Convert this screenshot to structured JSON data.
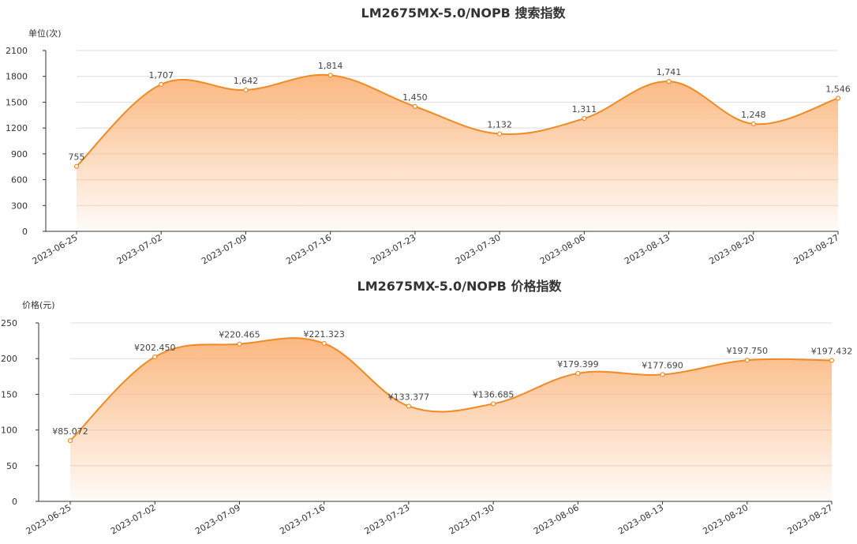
{
  "chart_data": [
    {
      "type": "area",
      "title": "LM2675MX-5.0/NOPB 搜索指数",
      "ylabel": "单位(次)",
      "ylim": [
        0,
        2100
      ],
      "yticks": [
        0,
        300,
        600,
        900,
        1200,
        1500,
        1800,
        2100
      ],
      "categories": [
        "2023-06-25",
        "2023-07-02",
        "2023-07-09",
        "2023-07-16",
        "2023-07-23",
        "2023-07-30",
        "2023-08-06",
        "2023-08-13",
        "2023-08-20",
        "2023-08-27"
      ],
      "values": [
        755,
        1707,
        1642,
        1814,
        1450,
        1132,
        1311,
        1741,
        1248,
        1546
      ],
      "value_labels": [
        "755",
        "1,707",
        "1,642",
        "1,814",
        "1,450",
        "1,132",
        "1,311",
        "1,741",
        "1,248",
        "1,546"
      ],
      "grid": true,
      "line_color": "#f08a24",
      "fill_color": "#fbb47a"
    },
    {
      "type": "area",
      "title": "LM2675MX-5.0/NOPB 价格指数",
      "ylabel": "价格(元)",
      "ylim": [
        0,
        250
      ],
      "yticks": [
        0,
        50,
        100,
        150,
        200,
        250
      ],
      "categories": [
        "2023-06-25",
        "2023-07-02",
        "2023-07-09",
        "2023-07-16",
        "2023-07-23",
        "2023-07-30",
        "2023-08-06",
        "2023-08-13",
        "2023-08-20",
        "2023-08-27"
      ],
      "values": [
        85.072,
        202.45,
        220.465,
        221.323,
        133.377,
        136.685,
        179.399,
        177.69,
        197.75,
        197.432
      ],
      "value_labels": [
        "¥85.072",
        "¥202.450",
        "¥220.465",
        "¥221.323",
        "¥133.377",
        "¥136.685",
        "¥179.399",
        "¥177.690",
        "¥197.750",
        "¥197.432"
      ],
      "grid": true,
      "line_color": "#f08a24",
      "fill_color": "#fbb47a"
    }
  ]
}
